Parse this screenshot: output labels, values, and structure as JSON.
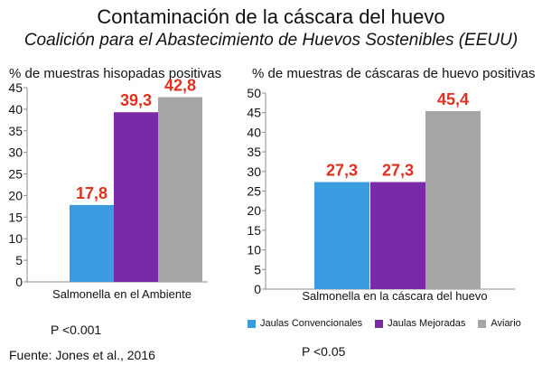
{
  "title": "Contaminación de la cáscara del huevo",
  "subtitle": "Coalición para el Abastecimiento de Huevos Sostenibles (EEUU)",
  "colors": {
    "convencional": "#3b9be0",
    "mejoradas": "#7a2aa6",
    "aviario": "#a6a6a6",
    "value_label": "#e2301e",
    "axis": "#8c8c8c"
  },
  "chart_data": [
    {
      "type": "bar",
      "ylabel": "% de muestras hisopadas positivas",
      "categories": [
        "Salmonella en el Ambiente"
      ],
      "ylim": [
        0,
        45
      ],
      "yticks": [
        "0",
        "5",
        "10",
        "15",
        "20",
        "25",
        "30",
        "35",
        "40",
        "45"
      ],
      "series": [
        {
          "name": "Jaulas Convencionales",
          "values": [
            17.8
          ],
          "label": "17,8"
        },
        {
          "name": "Jaulas Mejoradas",
          "values": [
            39.3
          ],
          "label": "39,3"
        },
        {
          "name": "Aviario",
          "values": [
            42.8
          ],
          "label": "42,8"
        }
      ],
      "note": "P <0.001"
    },
    {
      "type": "bar",
      "ylabel": "% de muestras de cáscaras de huevo positivas",
      "categories": [
        "Salmonella en la cáscara del huevo"
      ],
      "ylim": [
        0,
        50
      ],
      "yticks": [
        "0",
        "5",
        "10",
        "15",
        "20",
        "25",
        "30",
        "35",
        "40",
        "45",
        "50"
      ],
      "series": [
        {
          "name": "Jaulas Convencionales",
          "values": [
            27.3
          ],
          "label": "27,3"
        },
        {
          "name": "Jaulas Mejoradas",
          "values": [
            27.3
          ],
          "label": "27,3"
        },
        {
          "name": "Aviario",
          "values": [
            45.4
          ],
          "label": "45,4"
        }
      ],
      "note": "P <0.05"
    }
  ],
  "legend": [
    "Jaulas Convencionales",
    "Jaulas Mejoradas",
    "Aviario"
  ],
  "source": "Fuente: Jones et al., 2016"
}
